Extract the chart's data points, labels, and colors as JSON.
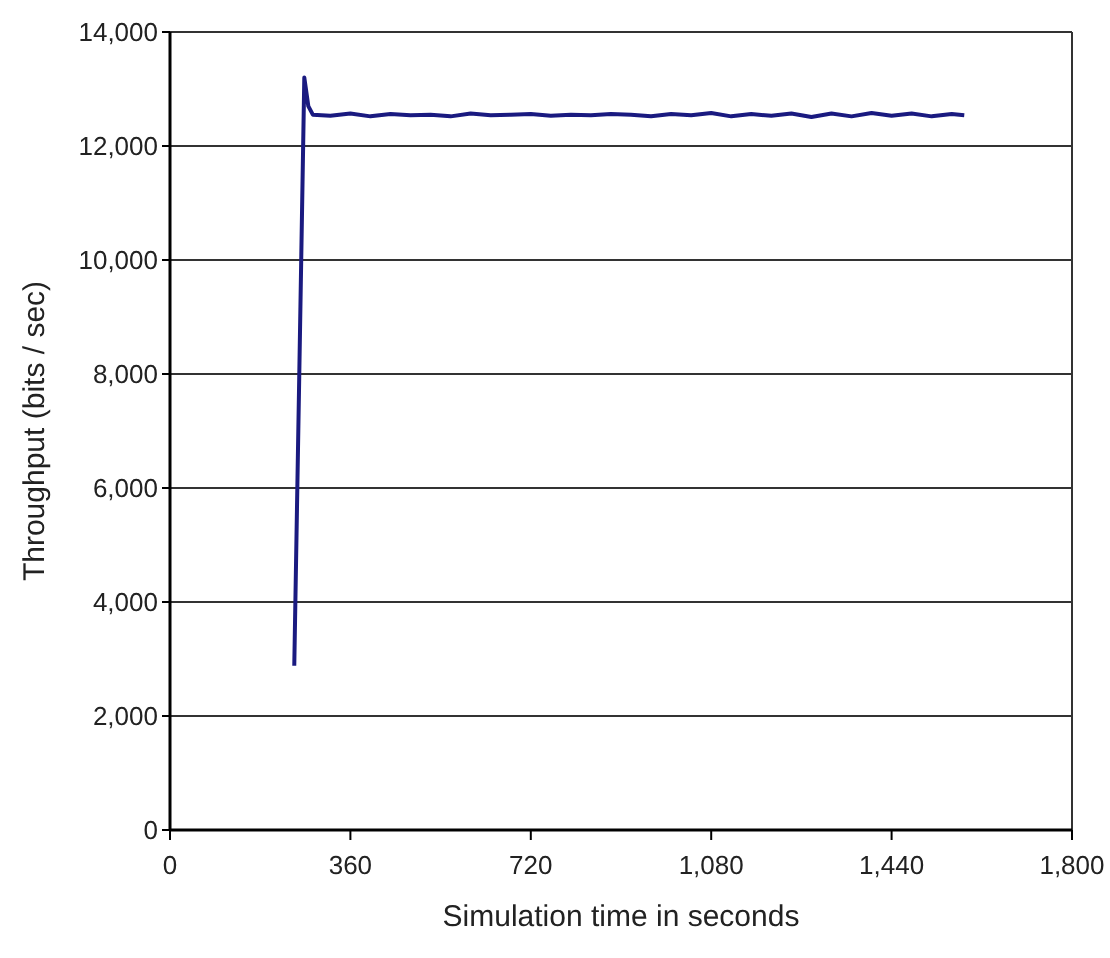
{
  "chart_data": {
    "type": "line",
    "xlabel": "Simulation time in seconds",
    "ylabel": "Throughput (bits / sec)",
    "series": [
      {
        "color": "#1a1a80",
        "x": [
          248,
          258,
          268,
          276,
          285,
          320,
          360,
          400,
          440,
          480,
          520,
          560,
          600,
          640,
          680,
          720,
          760,
          800,
          840,
          880,
          920,
          960,
          1000,
          1040,
          1080,
          1120,
          1160,
          1200,
          1240,
          1280,
          1320,
          1360,
          1400,
          1440,
          1480,
          1520,
          1560,
          1585
        ],
        "values": [
          2880,
          8000,
          13200,
          12700,
          12550,
          12530,
          12570,
          12520,
          12560,
          12540,
          12550,
          12520,
          12570,
          12540,
          12550,
          12560,
          12530,
          12550,
          12540,
          12560,
          12550,
          12520,
          12560,
          12540,
          12580,
          12520,
          12560,
          12530,
          12570,
          12510,
          12570,
          12520,
          12580,
          12530,
          12570,
          12520,
          12560,
          12540
        ]
      }
    ],
    "xlim": [
      0,
      1800
    ],
    "xticks": [
      0,
      360,
      720,
      {
        "value": 1080,
        "label": "1,080"
      },
      {
        "value": 1440,
        "label": "1,440"
      },
      {
        "value": 1800,
        "label": "1,800"
      }
    ],
    "ylim": [
      0,
      14000
    ],
    "yticks": [
      0,
      {
        "value": 2000,
        "label": "2,000"
      },
      {
        "value": 4000,
        "label": "4,000"
      },
      {
        "value": 6000,
        "label": "6,000"
      },
      {
        "value": 8000,
        "label": "8,000"
      },
      {
        "value": 10000,
        "label": "10,000"
      },
      {
        "value": 12000,
        "label": "12,000"
      },
      {
        "value": 14000,
        "label": "14,000"
      }
    ],
    "grid": "y",
    "marker": "none",
    "line_style": "solid"
  }
}
